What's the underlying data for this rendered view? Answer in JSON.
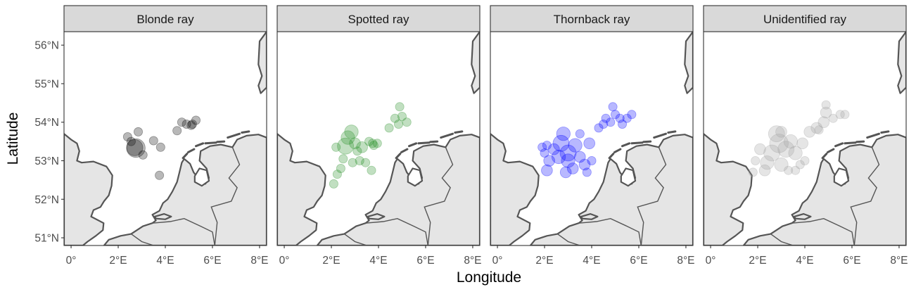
{
  "axes": {
    "x_title": "Longitude",
    "y_title": "Latitude",
    "x_ticks": [
      "0°",
      "2°E",
      "4°E",
      "6°E",
      "8°E"
    ],
    "y_ticks": [
      "56°N",
      "55°N",
      "54°N",
      "53°N",
      "52°N",
      "51°N"
    ]
  },
  "panels": [
    {
      "title": "Blonde ray",
      "color": "#000000"
    },
    {
      "title": "Spotted ray",
      "color": "#228B22"
    },
    {
      "title": "Thornback ray",
      "color": "#0000FF"
    },
    {
      "title": "Unidentified ray",
      "color": "#A0A0A0"
    }
  ],
  "chart_data": {
    "type": "scatter",
    "facets": [
      "Blonde ray",
      "Spotted ray",
      "Thornback ray",
      "Unidentified ray"
    ],
    "xlabel": "Longitude",
    "ylabel": "Latitude",
    "xlim": [
      -0.3,
      8.3
    ],
    "ylim": [
      50.8,
      56.35
    ],
    "x_ticks": [
      0,
      2,
      4,
      6,
      8
    ],
    "y_ticks": [
      51,
      52,
      53,
      54,
      55,
      56
    ],
    "grid": false,
    "basemap": {
      "land_fill": "#e5e5e5",
      "coast_color": "#555555"
    },
    "series": [
      {
        "name": "Blonde ray",
        "color": "#000000",
        "points": [
          [
            2.75,
            53.33,
            3
          ],
          [
            2.7,
            53.34,
            2.5
          ],
          [
            2.55,
            53.5,
            1
          ],
          [
            2.4,
            53.62,
            1
          ],
          [
            2.85,
            53.75,
            1
          ],
          [
            3.05,
            53.15,
            1
          ],
          [
            3.5,
            53.52,
            1
          ],
          [
            3.8,
            53.35,
            1
          ],
          [
            3.75,
            52.62,
            1
          ],
          [
            4.5,
            53.78,
            1
          ],
          [
            4.7,
            54.0,
            1
          ],
          [
            4.9,
            53.95,
            1
          ],
          [
            5.15,
            53.95,
            1
          ],
          [
            5.3,
            54.05,
            1
          ],
          [
            5.1,
            53.92,
            1
          ]
        ]
      },
      {
        "name": "Spotted ray",
        "color": "#228B22",
        "points": [
          [
            2.85,
            53.75,
            2
          ],
          [
            2.7,
            53.6,
            2
          ],
          [
            2.6,
            53.38,
            2.5
          ],
          [
            3.0,
            53.45,
            1.5
          ],
          [
            3.3,
            53.35,
            1.5
          ],
          [
            3.6,
            53.5,
            1
          ],
          [
            3.8,
            53.4,
            1
          ],
          [
            2.2,
            53.35,
            1
          ],
          [
            2.5,
            53.05,
            1
          ],
          [
            2.9,
            52.95,
            1
          ],
          [
            3.2,
            53.0,
            1
          ],
          [
            3.45,
            52.95,
            1
          ],
          [
            3.1,
            53.25,
            1
          ],
          [
            2.25,
            52.65,
            1
          ],
          [
            2.1,
            52.4,
            1
          ],
          [
            3.7,
            52.75,
            1
          ],
          [
            2.4,
            52.8,
            1
          ],
          [
            4.85,
            53.95,
            1
          ],
          [
            5.0,
            54.15,
            1
          ],
          [
            4.9,
            54.4,
            1
          ],
          [
            4.7,
            54.1,
            1
          ],
          [
            5.2,
            54.0,
            1
          ],
          [
            4.45,
            53.85,
            1
          ],
          [
            3.75,
            53.45,
            1
          ],
          [
            3.95,
            53.45,
            1
          ]
        ]
      },
      {
        "name": "Thornback ray",
        "color": "#0000FF",
        "points": [
          [
            2.8,
            53.7,
            2
          ],
          [
            2.7,
            53.45,
            2.5
          ],
          [
            3.0,
            53.2,
            2.5
          ],
          [
            2.6,
            53.1,
            2
          ],
          [
            3.3,
            53.4,
            2
          ],
          [
            3.0,
            53.0,
            2
          ],
          [
            2.4,
            53.3,
            1.5
          ],
          [
            2.2,
            53.0,
            1.5
          ],
          [
            2.1,
            52.75,
            1.5
          ],
          [
            3.5,
            53.1,
            1.5
          ],
          [
            3.7,
            52.9,
            1.5
          ],
          [
            3.9,
            53.45,
            1.5
          ],
          [
            3.8,
            52.7,
            1
          ],
          [
            2.0,
            53.2,
            1
          ],
          [
            1.9,
            53.35,
            1
          ],
          [
            3.5,
            53.7,
            1
          ],
          [
            4.3,
            53.85,
            1
          ],
          [
            4.5,
            53.95,
            1
          ],
          [
            4.8,
            54.0,
            1
          ],
          [
            5.2,
            54.1,
            1
          ],
          [
            5.7,
            54.2,
            1
          ],
          [
            5.5,
            54.1,
            1
          ],
          [
            4.9,
            54.4,
            1
          ],
          [
            5.0,
            54.2,
            1
          ],
          [
            4.6,
            54.1,
            1
          ],
          [
            5.3,
            53.95,
            1
          ],
          [
            2.9,
            52.7,
            1.5
          ],
          [
            3.2,
            52.8,
            1.5
          ],
          [
            4.0,
            53.0,
            1
          ],
          [
            2.1,
            53.4,
            1
          ]
        ]
      },
      {
        "name": "Unidentified ray",
        "color": "#A0A0A0",
        "points": [
          [
            2.8,
            53.7,
            2.5
          ],
          [
            2.9,
            53.45,
            3
          ],
          [
            2.6,
            53.2,
            2.5
          ],
          [
            3.2,
            53.3,
            2.5
          ],
          [
            2.4,
            52.95,
            2
          ],
          [
            3.0,
            52.9,
            2
          ],
          [
            3.6,
            53.2,
            2
          ],
          [
            3.4,
            53.5,
            2
          ],
          [
            3.9,
            53.45,
            1.5
          ],
          [
            2.1,
            53.3,
            1.5
          ],
          [
            1.9,
            53.0,
            1
          ],
          [
            1.8,
            52.7,
            1
          ],
          [
            2.3,
            52.75,
            1.5
          ],
          [
            3.6,
            52.75,
            1
          ],
          [
            3.8,
            52.9,
            1
          ],
          [
            4.0,
            53.0,
            1
          ],
          [
            4.2,
            53.75,
            1.5
          ],
          [
            4.5,
            53.85,
            1.5
          ],
          [
            4.8,
            54.0,
            1.5
          ],
          [
            4.9,
            54.25,
            1.5
          ],
          [
            5.2,
            54.1,
            1
          ],
          [
            5.5,
            54.2,
            1
          ],
          [
            5.7,
            54.2,
            1
          ],
          [
            4.9,
            54.45,
            1
          ],
          [
            3.3,
            52.75,
            1
          ],
          [
            3.0,
            53.75,
            1.5
          ],
          [
            4.6,
            53.8,
            1
          ]
        ]
      }
    ]
  }
}
